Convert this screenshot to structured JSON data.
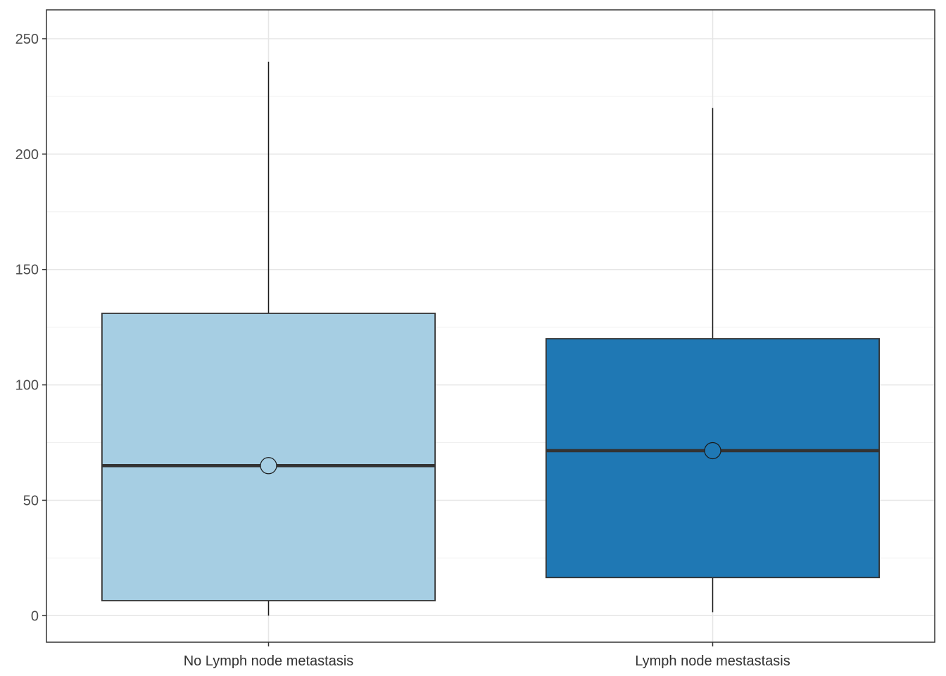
{
  "chart_data": {
    "type": "box",
    "title": "",
    "xlabel": "",
    "ylabel": "",
    "categories": [
      "No Lymph node metastasis",
      "Lymph node mestastasis"
    ],
    "ylim": [
      -11.5,
      262.5
    ],
    "yticks": [
      0,
      50,
      100,
      150,
      200,
      250
    ],
    "ytick_labels": [
      "0",
      "50",
      "100",
      "150",
      "200",
      "250"
    ],
    "grid": true,
    "legend": "none",
    "boxes": [
      {
        "category": "No Lymph node metastasis",
        "min": 0,
        "q1": 6.5,
        "median": 65,
        "mean": 65,
        "q3": 131,
        "max": 240,
        "color": "#A6CEE3"
      },
      {
        "category": "Lymph node mestastasis",
        "min": 1.5,
        "q1": 16.5,
        "median": 71.5,
        "mean": 71.5,
        "q3": 120,
        "max": 220,
        "color": "#1F78B4"
      }
    ]
  }
}
